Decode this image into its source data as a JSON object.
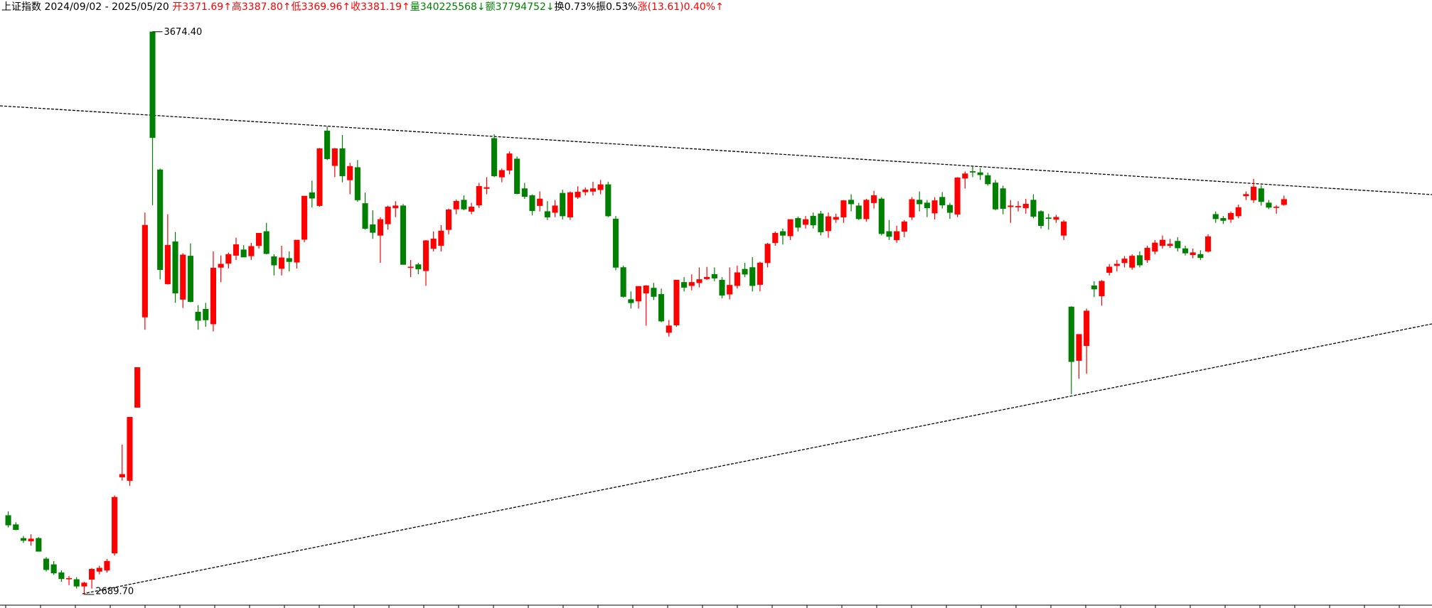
{
  "chart_data": {
    "type": "candlestick",
    "header": {
      "title": "上证指数",
      "range": "2024/09/02 - 2025/05/20",
      "fields": [
        {
          "text": "开3371.69↑",
          "color": "#ff0000"
        },
        {
          "text": "高3387.80↑",
          "color": "#ff0000"
        },
        {
          "text": "低3369.96↑",
          "color": "#ff0000"
        },
        {
          "text": "收3381.19↑",
          "color": "#ff0000"
        },
        {
          "text": "量340225568↓",
          "color": "#008000"
        },
        {
          "text": "额37794752↓",
          "color": "#008000"
        },
        {
          "text": "换0.73%",
          "color": "#000000"
        },
        {
          "text": "振0.53%",
          "color": "#000000"
        },
        {
          "text": "涨(13.61)0.40%↑",
          "color": "#ff0000"
        }
      ]
    },
    "up_color": "#ff0000",
    "down_color": "#008000",
    "ylim": [
      2666,
      3730
    ],
    "open": [
      2828,
      2812,
      2788,
      2783,
      2788,
      2752,
      2742,
      2728,
      2717,
      2716,
      2704,
      2716,
      2730,
      2732,
      2762,
      2895,
      2889,
      3017,
      3175,
      3674.4,
      3433,
      3233,
      3307,
      3206,
      3282,
      3184,
      3189,
      3163,
      3262,
      3269,
      3283,
      3293,
      3282,
      3300,
      3325,
      3281,
      3260,
      3278,
      3271,
      3311,
      3393,
      3370,
      3501,
      3440,
      3470,
      3415,
      3437,
      3374,
      3337,
      3318,
      3338,
      3366,
      3370,
      3262,
      3267,
      3256,
      3295,
      3300,
      3328,
      3364,
      3380,
      3360,
      3371,
      3400,
      3488,
      3420,
      3432,
      3452,
      3400,
      3388,
      3370,
      3360,
      3358,
      3392,
      3350,
      3385,
      3394,
      3395,
      3398,
      3407,
      3347,
      3262,
      3206,
      3203,
      3217,
      3226,
      3215,
      3148,
      3161,
      3236,
      3230,
      3235,
      3242,
      3250,
      3240,
      3215,
      3230,
      3259,
      3262,
      3232,
      3270,
      3305,
      3325,
      3317,
      3348,
      3337,
      3352,
      3356,
      3326,
      3346,
      3350,
      3380,
      3370,
      3347,
      3375,
      3382,
      3325,
      3310,
      3325,
      3350,
      3380,
      3375,
      3357,
      3385,
      3371,
      3355,
      3418,
      3430,
      3428,
      3423,
      3410,
      3400,
      3368,
      3368,
      3366,
      3380,
      3360,
      3349,
      3346,
      3318,
      3193,
      3099,
      3125,
      3230,
      3212,
      3253,
      3265,
      3270,
      3262,
      3283,
      3275,
      3290,
      3300,
      3300,
      3308,
      3295,
      3284,
      3285,
      3290,
      3355,
      3348,
      3346,
      3352,
      3387,
      3380,
      3400,
      3375,
      3368,
      3371.69
    ],
    "high": [
      2835,
      2816,
      2792,
      2795,
      2790,
      2755,
      2748,
      2732,
      2722,
      2720,
      2712,
      2736,
      2740,
      2752,
      2863,
      2952,
      3000,
      3087,
      3358,
      3674.4,
      3435,
      3355,
      3324,
      3287,
      3304,
      3196,
      3200,
      3290,
      3283,
      3288,
      3314,
      3301,
      3305,
      3322,
      3340,
      3285,
      3300,
      3290,
      3310,
      3387,
      3414,
      3471,
      3509,
      3471,
      3494,
      3445,
      3450,
      3393,
      3362,
      3350,
      3370,
      3378,
      3373,
      3275,
      3270,
      3310,
      3325,
      3336,
      3365,
      3381,
      3388,
      3375,
      3410,
      3420,
      3495,
      3435,
      3465,
      3456,
      3410,
      3390,
      3395,
      3378,
      3380,
      3398,
      3395,
      3404,
      3402,
      3412,
      3415,
      3412,
      3352,
      3265,
      3220,
      3229,
      3231,
      3235,
      3225,
      3170,
      3240,
      3245,
      3250,
      3262,
      3263,
      3262,
      3245,
      3262,
      3265,
      3270,
      3280,
      3272,
      3305,
      3325,
      3330,
      3346,
      3351,
      3352,
      3358,
      3361,
      3358,
      3356,
      3380,
      3390,
      3375,
      3382,
      3396,
      3385,
      3345,
      3335,
      3345,
      3385,
      3395,
      3380,
      3385,
      3394,
      3375,
      3420,
      3430,
      3440,
      3436,
      3428,
      3415,
      3405,
      3380,
      3378,
      3382,
      3390,
      3362,
      3356,
      3354,
      3345,
      3194,
      3145,
      3190,
      3238,
      3240,
      3268,
      3275,
      3282,
      3285,
      3290,
      3300,
      3310,
      3318,
      3312,
      3315,
      3300,
      3295,
      3292,
      3320,
      3360,
      3352,
      3360,
      3372,
      3395,
      3417,
      3406,
      3380,
      3371,
      3387.8
    ],
    "low": [
      2807,
      2802,
      2780,
      2775,
      2765,
      2730,
      2724,
      2712,
      2706,
      2700,
      2689.7,
      2700,
      2725,
      2728,
      2758,
      2889,
      2880,
      3017,
      3153,
      3371,
      3241,
      3232,
      3200,
      3191,
      3201,
      3153,
      3158,
      3150,
      3236,
      3260,
      3275,
      3280,
      3275,
      3295,
      3285,
      3248,
      3248,
      3255,
      3260,
      3306,
      3367,
      3368,
      3450,
      3420,
      3411,
      3390,
      3377,
      3328,
      3312,
      3270,
      3328,
      3350,
      3267,
      3245,
      3250,
      3230,
      3290,
      3290,
      3320,
      3355,
      3362,
      3355,
      3366,
      3390,
      3420,
      3411,
      3425,
      3390,
      3382,
      3353,
      3360,
      3345,
      3350,
      3346,
      3345,
      3382,
      3388,
      3388,
      3390,
      3350,
      3257,
      3209,
      3190,
      3190,
      3160,
      3205,
      3166,
      3141,
      3158,
      3220,
      3222,
      3227,
      3240,
      3238,
      3208,
      3206,
      3225,
      3245,
      3220,
      3220,
      3262,
      3300,
      3302,
      3310,
      3325,
      3330,
      3330,
      3318,
      3314,
      3340,
      3340,
      3360,
      3345,
      3342,
      3365,
      3318,
      3310,
      3305,
      3315,
      3345,
      3360,
      3350,
      3346,
      3365,
      3347,
      3350,
      3400,
      3420,
      3415,
      3405,
      3362,
      3355,
      3340,
      3360,
      3356,
      3348,
      3330,
      3328,
      3340,
      3310,
      3040,
      3067,
      3076,
      3210,
      3195,
      3248,
      3255,
      3262,
      3258,
      3262,
      3270,
      3285,
      3295,
      3296,
      3290,
      3283,
      3278,
      3275,
      3288,
      3340,
      3338,
      3340,
      3348,
      3380,
      3375,
      3370,
      3364,
      3356,
      3369.96
    ],
    "close": [
      2811,
      2803,
      2784,
      2787,
      2765,
      2733,
      2727,
      2717,
      2718,
      2704,
      2710,
      2734,
      2736,
      2748,
      2860,
      2900,
      3000,
      3087,
      3336,
      3489,
      3258,
      3301,
      3217,
      3284,
      3202,
      3169,
      3170,
      3261,
      3268,
      3285,
      3302,
      3280,
      3299,
      3322,
      3286,
      3266,
      3279,
      3272,
      3310,
      3387,
      3383,
      3470,
      3452,
      3470,
      3422,
      3439,
      3380,
      3330,
      3323,
      3346,
      3368,
      3370,
      3267,
      3263,
      3259,
      3309,
      3312,
      3326,
      3363,
      3378,
      3364,
      3368,
      3404,
      3402,
      3422,
      3432,
      3461,
      3391,
      3386,
      3361,
      3382,
      3350,
      3370,
      3352,
      3393,
      3394,
      3398,
      3400,
      3407,
      3352,
      3262,
      3211,
      3200,
      3229,
      3230,
      3211,
      3168,
      3160,
      3240,
      3227,
      3236,
      3241,
      3245,
      3243,
      3213,
      3231,
      3253,
      3250,
      3230,
      3270,
      3303,
      3322,
      3318,
      3346,
      3332,
      3346,
      3336,
      3324,
      3351,
      3350,
      3379,
      3373,
      3347,
      3380,
      3388,
      3321,
      3316,
      3325,
      3342,
      3381,
      3373,
      3366,
      3379,
      3371,
      3358,
      3419,
      3426,
      3429,
      3424,
      3408,
      3364,
      3365,
      3370,
      3369,
      3373,
      3351,
      3335,
      3348,
      3350,
      3342,
      3097,
      3145,
      3186,
      3224,
      3238,
      3263,
      3268,
      3277,
      3282,
      3266,
      3296,
      3305,
      3310,
      3303,
      3296,
      3287,
      3288,
      3279,
      3316,
      3347,
      3344,
      3357,
      3367,
      3390,
      3403,
      3377,
      3367,
      3368,
      3381.19
    ],
    "annotations": [
      {
        "label": "3674.40",
        "value": 3674.4,
        "at": "high"
      },
      {
        "label": "2689.70",
        "value": 2689.7,
        "at": "low"
      }
    ]
  }
}
